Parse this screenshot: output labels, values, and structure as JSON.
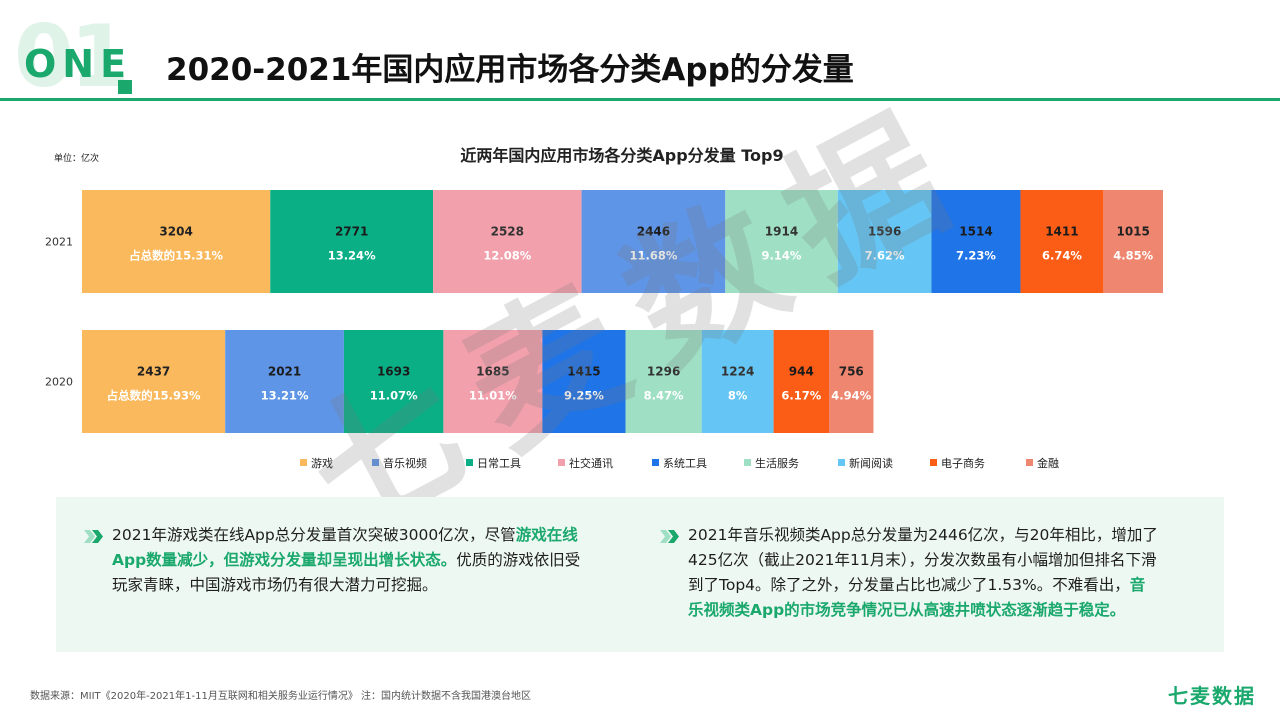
{
  "header": {
    "big_number": "01",
    "section_label": "ONE",
    "title": "2020-2021年国内应用市场各分类App的分发量"
  },
  "chart_data": {
    "type": "bar",
    "orientation": "horizontal-stacked",
    "title": "近两年国内应用市场各分类App分发量 Top9",
    "unit_label": "单位：亿次",
    "rows": [
      {
        "year": "2021",
        "segments": [
          {
            "category": "游戏",
            "value": 3204,
            "value_label": "3204",
            "share": "占总数的15.31%",
            "color": "#fbb95e"
          },
          {
            "category": "日常工具",
            "value": 2771,
            "value_label": "2771",
            "share": "13.24%",
            "color": "#0aaf86"
          },
          {
            "category": "社交通讯",
            "value": 2528,
            "value_label": "2528",
            "share": "12.08%",
            "color": "#f1a0ac"
          },
          {
            "category": "音乐视频",
            "value": 2446,
            "value_label": "2446",
            "share": "11.68%",
            "color": "#5f95e6"
          },
          {
            "category": "生活服务",
            "value": 1914,
            "value_label": "1914",
            "share": "9.14%",
            "color": "#9fe0c5"
          },
          {
            "category": "新闻阅读",
            "value": 1596,
            "value_label": "1596",
            "share": "7.62%",
            "color": "#65c6f5"
          },
          {
            "category": "系统工具",
            "value": 1514,
            "value_label": "1514",
            "share": "7.23%",
            "color": "#1f74e8"
          },
          {
            "category": "电子商务",
            "value": 1411,
            "value_label": "1411",
            "share": "6.74%",
            "color": "#fb5c16"
          },
          {
            "category": "金融",
            "value": 1015,
            "value_label": "1015",
            "share": "4.85%",
            "color": "#ef8670"
          }
        ]
      },
      {
        "year": "2020",
        "segments": [
          {
            "category": "游戏",
            "value": 2437,
            "value_label": "2437",
            "share": "占总数的15.93%",
            "color": "#fbb95e"
          },
          {
            "category": "音乐视频",
            "value": 2021,
            "value_label": "2021",
            "share": "13.21%",
            "color": "#5f95e6"
          },
          {
            "category": "日常工具",
            "value": 1693,
            "value_label": "1693",
            "share": "11.07%",
            "color": "#0aaf86"
          },
          {
            "category": "社交通讯",
            "value": 1685,
            "value_label": "1685",
            "share": "11.01%",
            "color": "#f1a0ac"
          },
          {
            "category": "系统工具",
            "value": 1415,
            "value_label": "1415",
            "share": "9.25%",
            "color": "#1f74e8"
          },
          {
            "category": "生活服务",
            "value": 1296,
            "value_label": "1296",
            "share": "8.47%",
            "color": "#9fe0c5"
          },
          {
            "category": "新闻阅读",
            "value": 1224,
            "value_label": "1224",
            "share": "8%",
            "color": "#65c6f5"
          },
          {
            "category": "电子商务",
            "value": 944,
            "value_label": "944",
            "share": "6.17%",
            "color": "#fb5c16"
          },
          {
            "category": "金融",
            "value": 756,
            "value_label": "756",
            "share": "4.94%",
            "color": "#ef8670"
          }
        ]
      }
    ],
    "legend": [
      {
        "label": "游戏",
        "color": "#fbb95e"
      },
      {
        "label": "音乐视频",
        "color": "#5f95e6"
      },
      {
        "label": "日常工具",
        "color": "#0aaf86"
      },
      {
        "label": "社交通讯",
        "color": "#f1a0ac"
      },
      {
        "label": "系统工具",
        "color": "#1f74e8"
      },
      {
        "label": "生活服务",
        "color": "#9fe0c5"
      },
      {
        "label": "新闻阅读",
        "color": "#65c6f5"
      },
      {
        "label": "电子商务",
        "color": "#fb5c16"
      },
      {
        "label": "金融",
        "color": "#ef8670"
      }
    ]
  },
  "watermark": "七麦数据",
  "insights": {
    "left": {
      "pre": "2021年游戏类在线App总分发量首次突破3000亿次，尽管",
      "highlight": "游戏在线App数量减少，但游戏分发量却呈现出增长状态。",
      "post": "优质的游戏依旧受玩家青睐，中国游戏市场仍有很大潜力可挖掘。"
    },
    "right": {
      "pre": "2021年音乐视频类App总分发量为2446亿次，与20年相比，增加了425亿次（截止2021年11月末），分发次数虽有小幅增加但排名下滑到了Top4。除了之外，分发量占比也减少了1.53%。不难看出，",
      "highlight": "音乐视频类App的市场竞争情况已从高速井喷状态逐渐趋于稳定。",
      "post": ""
    }
  },
  "footer": {
    "source": "数据来源：MIIT《2020年-2021年1-11月互联网和相关服务业运行情况》 注：国内统计数据不含我国港澳台地区",
    "brand": "七麦数据"
  }
}
